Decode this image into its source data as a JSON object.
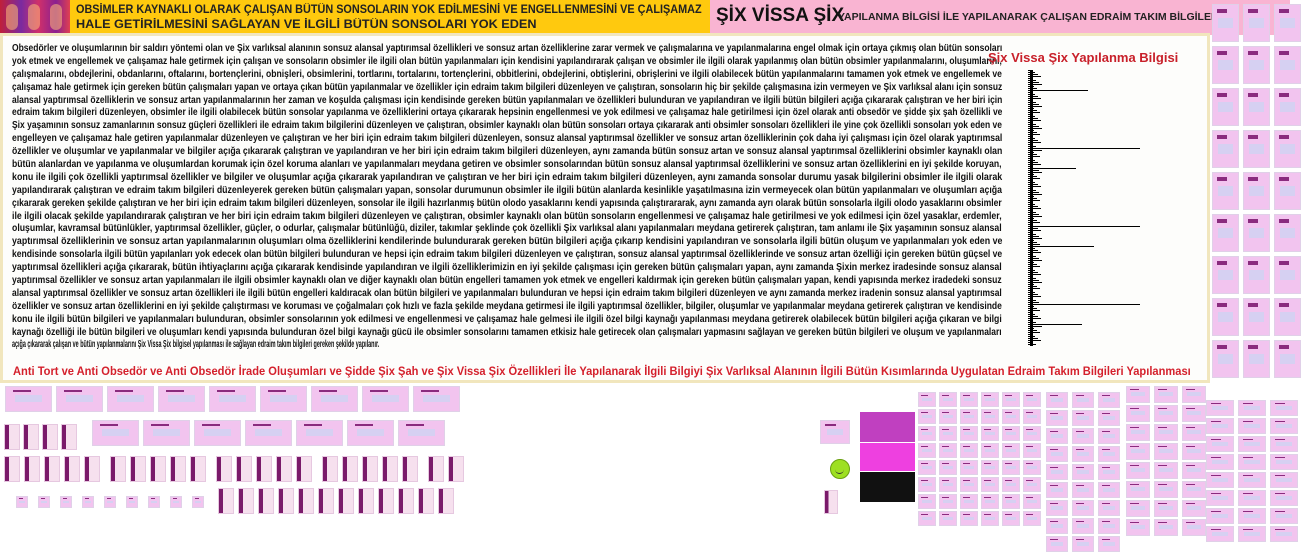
{
  "header": {
    "left_title_line1": "OBSİMLER KAYNAKLI OLARAK ÇALIŞAN BÜTÜN SONSOLARIN YOK EDİLMESİNİ VE ENGELLENMESİNİ VE ÇALIŞAMAZ",
    "left_title_line2": "HALE GETİRİLMESİNİ SAĞLAYAN VE İLGİLİ BÜTÜN SONSOLARI YOK EDEN",
    "right_title_big": "ŞİX VİSSA ŞİX",
    "right_title_small": "YAPILANMA BİLGİSİ İLE YAPILANARAK ÇALIŞAN EDRAİM TAKIM BİLGİLERİ"
  },
  "main": {
    "paragraph_lines": [
      "Obsedörler ve oluşumlarının bir saldırı yöntemi olan ve Şix varlıksal alanının sonsuz alansal yaptırımsal özellikleri ve sonsuz artan özelliklerine zarar vermek ve çalışmalarına ve yapılanmalarına engel olmak için ortaya çıkmış olan bütün sonsoları",
      "yok etmek ve engellemek ve çalışamaz hale getirmek için çalışan ve sonsoların obsimler ile ilgili olan bütün yapılanmaları için kendisini yapılandırarak çalışan ve obsimler ile ilgili olarak yapılanmış olan bütün obsimler yapılanmalarını, oluşumlarını,",
      "çalışmalarını, obdejlerini, obdanlarını, oftalarını, bortençlerini, obnişleri, obsimlerini, tortlarını, tortalarını, tortençlerini, obbitlerini, obdejlerini, obtişlerini, obrişlerini ve ilgili olabilecek bütün yapılanmalarını tamamen yok etmek ve engellemek ve",
      "çalışamaz hale getirmek için gereken bütün çalışmaları yapan ve ortaya çıkan bütün yapılanmalar ve özellikler için edraim takım bilgileri düzenleyen ve çalıştıran, sonsoların hiç bir şekilde çalışmasına izin vermeyen ve Şix varlıksal alanı için sonsuz",
      "alansal yaptırımsal özelliklerin ve sonsuz artan yapılanmalarının her zaman ve koşulda çalışması için kendisinde gereken bütün yapılanmaları ve özellikleri bulunduran ve yapılandıran ve ilgili bütün bilgileri açığa çıkararak çalıştıran ve her biri için",
      "edraim takım bilgileri düzenleyen, obsimler ile ilgili olabilecek bütün sonsolar yapılanma ve özelliklerini ortaya çıkararak hepsinin engellenmesi ve yok edilmesi ve çalışamaz hale getirilmesi için özel olarak anti obsedör ve şidde şix şah özellikli ve",
      "Şix yaşamının sonsuz zamanlarının sonsuz güçleri özellikleri ile edraim takım bilgilerini düzenleyen ve çalıştıran, obsimler kaynaklı olan bütün sonsoları ortaya çıkararak anti obsimler sonsoları özellikleri ile yine çok özellikli sonsoları yok eden ve",
      "engelleyen ve çalışamaz hale getiren yapılanmalar düzenleyen ve çalıştıran ve her biri için edraim takım bilgileri düzenleyen, sonsuz alansal yaptırımsal özellikler ve sonsuz artan özelliklerinin çok daha iyi çalışması için özel olarak yaptırımsal",
      "özellikler ve oluşumlar ve yapılanmalar ve bilgiler açığa çıkararak çalıştıran ve yapılandıran ve her biri için edraim takım bilgileri düzenleyen, aynı zamanda bütün sonsuz artan ve sonsuz alansal yaptırımsal özelliklerini obsimler kaynaklı olan",
      "bütün alanlardan ve yapılanma ve oluşumlardan korumak için özel koruma alanları ve yapılanmaları meydana getiren ve obsimler sonsolarından bütün sonsuz alansal yaptırımsal özelliklerini ve sonsuz artan özelliklerini en iyi şekilde koruyan,",
      "konu ile ilgili çok özellikli yaptırımsal özellikler ve bilgiler ve oluşumlar açığa çıkararak yapılandıran ve çalıştıran ve her biri için edraim takım bilgileri düzenleyen, aynı zamanda sonsolar durumu yasak bilgilerini obsimler ile ilgili olarak",
      "yapılandırarak çalıştıran ve edraim takım bilgileri düzenleyerek gereken bütün çalışmaları yapan, sonsolar durumunun obsimler ile ilgili bütün alanlarda kesinlikle yaşatılmasına izin vermeyecek olan bütün yapılanmaları ve oluşumları açığa",
      "çıkararak gereken şekilde çalıştıran ve her biri için edraim takım bilgileri düzenleyen, sonsolar ile ilgili hazırlanmış bütün olodo yasaklarını kendi yapısında çalıştırararak, aynı zamanda ayrı olarak bütün sonsolarla ilgili olodo yasaklarını obsimler",
      "ile ilgili olacak şekilde yapılandırarak çalıştıran ve her biri için edraim takım bilgileri düzenleyen ve çalıştıran, obsimler kaynaklı olan bütün sonsoların engellenmesi ve çalışamaz hale getirilmesi ve yok edilmesi için özel yasaklar, erdemler,",
      "oluşumlar, kavramsal bütünlükler, yaptırımsal özellikler, güçler, o odurlar, çalışmalar bütünlüğü, diziler, takımlar şeklinde çok özellikli Şix varlıksal alanı yapılanmaları meydana getirerek çalıştıran, tam anlamı ile Şix yaşamının sonsuz alansal",
      "yaptırımsal özelliklerinin ve sonsuz artan yapılanmalarının oluşumları olma özelliklerini kendilerinde bulundurarak gereken bütün bilgileri açığa çıkarıp kendisini yapılandıran ve sonsolarla ilgili bütün oluşum ve yapılanmaları yok eden ve",
      "kendisinde sonsolarla ilgili bütün yapılanları yok edecek olan bütün bilgileri bulunduran ve hepsi için edraim takım bilgileri düzenleyen ve çalıştıran, sonsuz alansal yaptırımsal özelliklerinde ve sonsuz artan özelliği için gereken bütün güçsel ve",
      "yaptırımsal özellikleri açığa çıkararak, bütün ihtiyaçlarını açığa çıkararak kendisinde yapılandıran ve ilgili özelliklerimizin en iyi şekilde çalışması için gereken bütün çalışmaları yapan, aynı zamanda Şixin merkez iradesinde sonsuz alansal",
      "yaptırımsal özellikler ve sonsuz artan yapılanmaları ile ilgili obsimler kaynaklı olan ve diğer kaynaklı olan bütün engelleri tamamen yok etmek ve engelleri kaldırmak için gereken bütün çalışmaları yapan, kendi yapısında merkez iradedeki sonsuz",
      "alansal yaptırımsal özellikler ve sonsuz artan özellikleri ile ilgili bütün engelleri kaldıracak olan bütün bilgileri ve yapılanmaları bulunduran ve hepsi için edraim takım bilgileri düzenleyen ve aynı zamanda merkez iradenin sonsuz alansal yaptırımsal",
      "özellikler ve sonsuz artan özelliklerini en iyi şekilde çalıştırması ve koruması ve çoğalmaları çok hızlı ve fazla şekilde meydana getirmesi ile ilgili yaptırımsal özellikler, bilgiler, oluşumlar ve yapılanmalar meydana getirerek çalıştıran ve kendisinde",
      "konu ile ilgili bütün bilgileri ve yapılanmaları bulunduran, obsimler sonsolarının yok edilmesi ve engellenmesi ve çalışamaz hale gelmesi ile ilgili özel bilgi kaynağı yapılanması meydana getirerek olabilecek bütün bilgileri açığa çıkaran ve bilgi",
      "kaynağı özelliği ile bütün bilgileri ve oluşumları kendi yapısında bulunduran özel bilgi kaynağı gücü ile obsimler sonsolarını tamamen etkisiz hale getirecek olan çalışmaları yapmasını sağlayan ve gereken bütün bilgileri ve oluşum ve yapılanmaları",
      "açığa çıkararak çalışan ve bütün yapılanmalarını Şix Vissa Şix bilgisel yapılanması ile sağlayan edraim takım bilgileri gereken şekilde yapılanır."
    ],
    "side_title": "Şix Vissa Şix Yapılanma Bilgisi",
    "footer_title": "Anti Tort ve Anti Obsedör ve Anti Obsedör İrade Oluşumları ve Şidde Şix Şah ve Şix Vissa Şix Özellikleri İle Yapılanarak İlgili Bilgiyi Şix Varlıksal Alanının İlgili Bütün Kısımlarında Uygulatan Edraim Takım Bilgileri Yapılanması"
  },
  "colors": {
    "header_yellow": "#ffc90e",
    "header_pink": "#f9b4d2",
    "accent_red": "#d4202c",
    "panel_border": "#f1e6bd",
    "thumbnail_pink": "#f2c4ef"
  },
  "icons": [
    "smiley-icon"
  ]
}
